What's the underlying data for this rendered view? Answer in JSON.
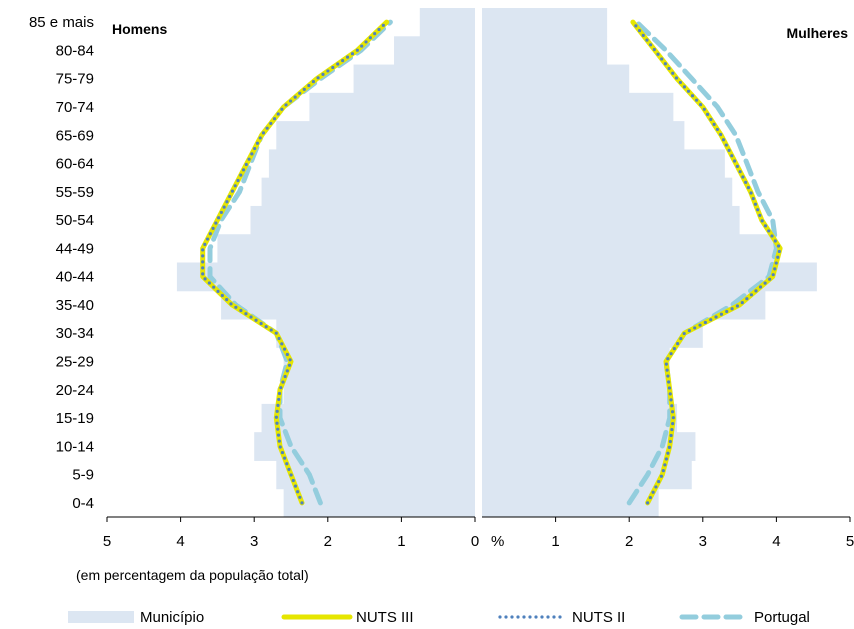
{
  "chart_data": {
    "type": "population-pyramid",
    "left_title": "Homens",
    "right_title": "Mulheres",
    "x_unit": "%",
    "x_note": "(em percentagem da população total)",
    "xlim": [
      0,
      5
    ],
    "x_ticks": [
      "5",
      "4",
      "3",
      "2",
      "1",
      "0",
      "1",
      "2",
      "3",
      "4",
      "5"
    ],
    "categories": [
      "0-4",
      "5-9",
      "10-14",
      "15-19",
      "20-24",
      "25-29",
      "30-34",
      "35-40",
      "40-44",
      "44-49",
      "50-54",
      "55-59",
      "60-64",
      "65-69",
      "70-74",
      "75-79",
      "80-84",
      "85 e mais"
    ],
    "series": [
      {
        "name": "Município",
        "style": "bar",
        "color": "#dce6f2",
        "men": [
          2.6,
          2.7,
          3.0,
          2.9,
          2.6,
          2.6,
          2.7,
          3.45,
          4.05,
          3.5,
          3.05,
          2.9,
          2.8,
          2.7,
          2.25,
          1.65,
          1.1,
          0.75
        ],
        "women": [
          2.4,
          2.85,
          2.9,
          2.65,
          2.55,
          2.55,
          3.0,
          3.85,
          4.55,
          4.0,
          3.5,
          3.4,
          3.3,
          2.75,
          2.6,
          2.0,
          1.7,
          1.7
        ]
      },
      {
        "name": "NUTS III",
        "style": "line",
        "color": "#e6e600",
        "men": [
          2.35,
          2.5,
          2.65,
          2.7,
          2.65,
          2.5,
          2.7,
          3.3,
          3.7,
          3.7,
          3.5,
          3.3,
          3.1,
          2.9,
          2.6,
          2.15,
          1.6,
          1.2
        ],
        "women": [
          2.25,
          2.45,
          2.55,
          2.6,
          2.55,
          2.5,
          2.75,
          3.5,
          3.95,
          4.05,
          3.8,
          3.65,
          3.45,
          3.25,
          3.0,
          2.65,
          2.35,
          2.05
        ]
      },
      {
        "name": "NUTS II",
        "style": "dotted",
        "color": "#4f81bd",
        "men": [
          2.35,
          2.5,
          2.65,
          2.7,
          2.65,
          2.5,
          2.7,
          3.3,
          3.7,
          3.7,
          3.5,
          3.3,
          3.1,
          2.9,
          2.6,
          2.15,
          1.6,
          1.2
        ],
        "women": [
          2.25,
          2.45,
          2.55,
          2.6,
          2.55,
          2.5,
          2.75,
          3.5,
          3.95,
          4.05,
          3.8,
          3.65,
          3.45,
          3.25,
          3.0,
          2.65,
          2.35,
          2.05
        ]
      },
      {
        "name": "Portugal",
        "style": "dashed",
        "color": "#93cddd",
        "men": [
          2.1,
          2.25,
          2.5,
          2.65,
          2.65,
          2.55,
          2.7,
          3.25,
          3.6,
          3.6,
          3.45,
          3.2,
          3.05,
          2.9,
          2.6,
          2.1,
          1.55,
          1.15
        ],
        "women": [
          2.0,
          2.25,
          2.45,
          2.55,
          2.55,
          2.5,
          2.75,
          3.4,
          3.9,
          4.0,
          3.95,
          3.75,
          3.6,
          3.45,
          3.2,
          2.85,
          2.5,
          2.1
        ]
      }
    ]
  }
}
